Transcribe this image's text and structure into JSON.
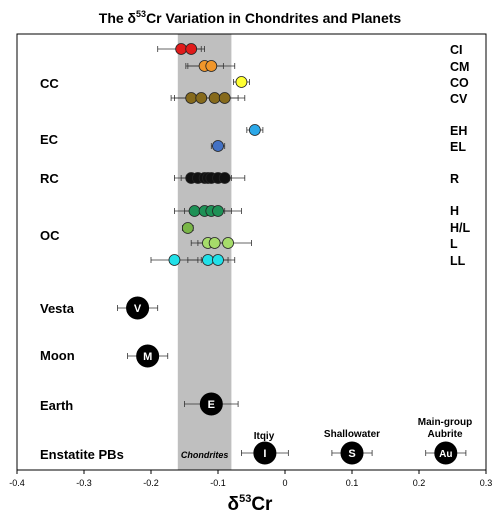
{
  "chart_data": {
    "type": "scatter",
    "title_prefix": "The ",
    "title_symbol": "δ",
    "title_sup": "53",
    "title_suffix": "Cr Variation in Chondrites and Planets",
    "xlabel_symbol": "δ",
    "xlabel_sup": "53",
    "xlabel_suffix": "Cr",
    "xlim": [
      -0.4,
      0.3
    ],
    "xticks": [
      "-0.4",
      "-0.3",
      "-0.2",
      "-0.1",
      "0",
      "0.1",
      "0.2",
      "0.3"
    ],
    "grid": false,
    "band": {
      "label": "Chondrites",
      "from": -0.16,
      "to": -0.08,
      "color": "#bfbfbf"
    },
    "groups": [
      {
        "label": "CC",
        "classes": [
          "CI",
          "CM",
          "CO",
          "CV"
        ]
      },
      {
        "label": "EC",
        "classes": [
          "EH",
          "EL"
        ]
      },
      {
        "label": "RC",
        "classes": [
          "R"
        ]
      },
      {
        "label": "OC",
        "classes": [
          "H",
          "H/L",
          "L",
          "LL"
        ]
      },
      {
        "label": "Vesta",
        "classes": []
      },
      {
        "label": "Moon",
        "classes": []
      },
      {
        "label": "Earth",
        "classes": []
      },
      {
        "label": "Enstatite PBs",
        "classes": []
      }
    ],
    "series": [
      {
        "name": "CI",
        "color": "#e01b1b",
        "points": [
          {
            "x": -0.155,
            "err": 0.035
          },
          {
            "x": -0.14,
            "err": 0.015
          }
        ]
      },
      {
        "name": "CM",
        "color": "#f0962a",
        "points": [
          {
            "x": -0.12,
            "err": 0.028
          },
          {
            "x": -0.11,
            "err": 0.035
          }
        ]
      },
      {
        "name": "CO",
        "color": "#ffff33",
        "points": [
          {
            "x": -0.065,
            "err": 0.012
          }
        ]
      },
      {
        "name": "CV",
        "color": "#866a1c",
        "points": [
          {
            "x": -0.14,
            "err": 0.03
          },
          {
            "x": -0.125,
            "err": 0.04
          },
          {
            "x": -0.105,
            "err": 0.035
          },
          {
            "x": -0.09,
            "err": 0.03
          }
        ]
      },
      {
        "name": "EH",
        "color": "#2ca8e8",
        "points": [
          {
            "x": -0.045,
            "err": 0.012
          }
        ]
      },
      {
        "name": "EL",
        "color": "#4472c4",
        "points": [
          {
            "x": -0.1,
            "err": 0.01
          }
        ]
      },
      {
        "name": "R",
        "color": "#111111",
        "points": [
          {
            "x": -0.14,
            "err": 0.025
          },
          {
            "x": -0.13,
            "err": 0.025
          },
          {
            "x": -0.12,
            "err": 0.025
          },
          {
            "x": -0.115,
            "err": 0.025
          },
          {
            "x": -0.11,
            "err": 0.02
          },
          {
            "x": -0.1,
            "err": 0.02
          },
          {
            "x": -0.09,
            "err": 0.03
          }
        ]
      },
      {
        "name": "H",
        "color": "#1e9156",
        "points": [
          {
            "x": -0.135,
            "err": 0.03
          },
          {
            "x": -0.12,
            "err": 0.03
          },
          {
            "x": -0.11,
            "err": 0.03
          },
          {
            "x": -0.1,
            "err": 0.035
          }
        ]
      },
      {
        "name": "H/L",
        "color": "#7ab648",
        "points": [
          {
            "x": -0.145,
            "err": 0.008
          }
        ]
      },
      {
        "name": "L",
        "color": "#a6dc6a",
        "points": [
          {
            "x": -0.115,
            "err": 0.025
          },
          {
            "x": -0.105,
            "err": 0.025
          },
          {
            "x": -0.085,
            "err": 0.035
          }
        ]
      },
      {
        "name": "LL",
        "color": "#22e0e8",
        "points": [
          {
            "x": -0.165,
            "err": 0.035
          },
          {
            "x": -0.115,
            "err": 0.03
          },
          {
            "x": -0.1,
            "err": 0.025
          }
        ]
      }
    ],
    "bodies": [
      {
        "name": "Vesta",
        "marker": "V",
        "x": -0.22,
        "err": 0.03
      },
      {
        "name": "Moon",
        "marker": "M",
        "x": -0.205,
        "err": 0.03
      },
      {
        "name": "Earth",
        "marker": "E",
        "x": -0.11,
        "err": 0.04
      },
      {
        "name": "Itqiy",
        "marker": "I",
        "x": -0.03,
        "err": 0.035
      },
      {
        "name": "Shallowater",
        "marker": "S",
        "x": 0.1,
        "err": 0.03
      },
      {
        "name": "Main-group Aubrite",
        "marker": "Au",
        "x": 0.24,
        "err": 0.03
      }
    ]
  }
}
